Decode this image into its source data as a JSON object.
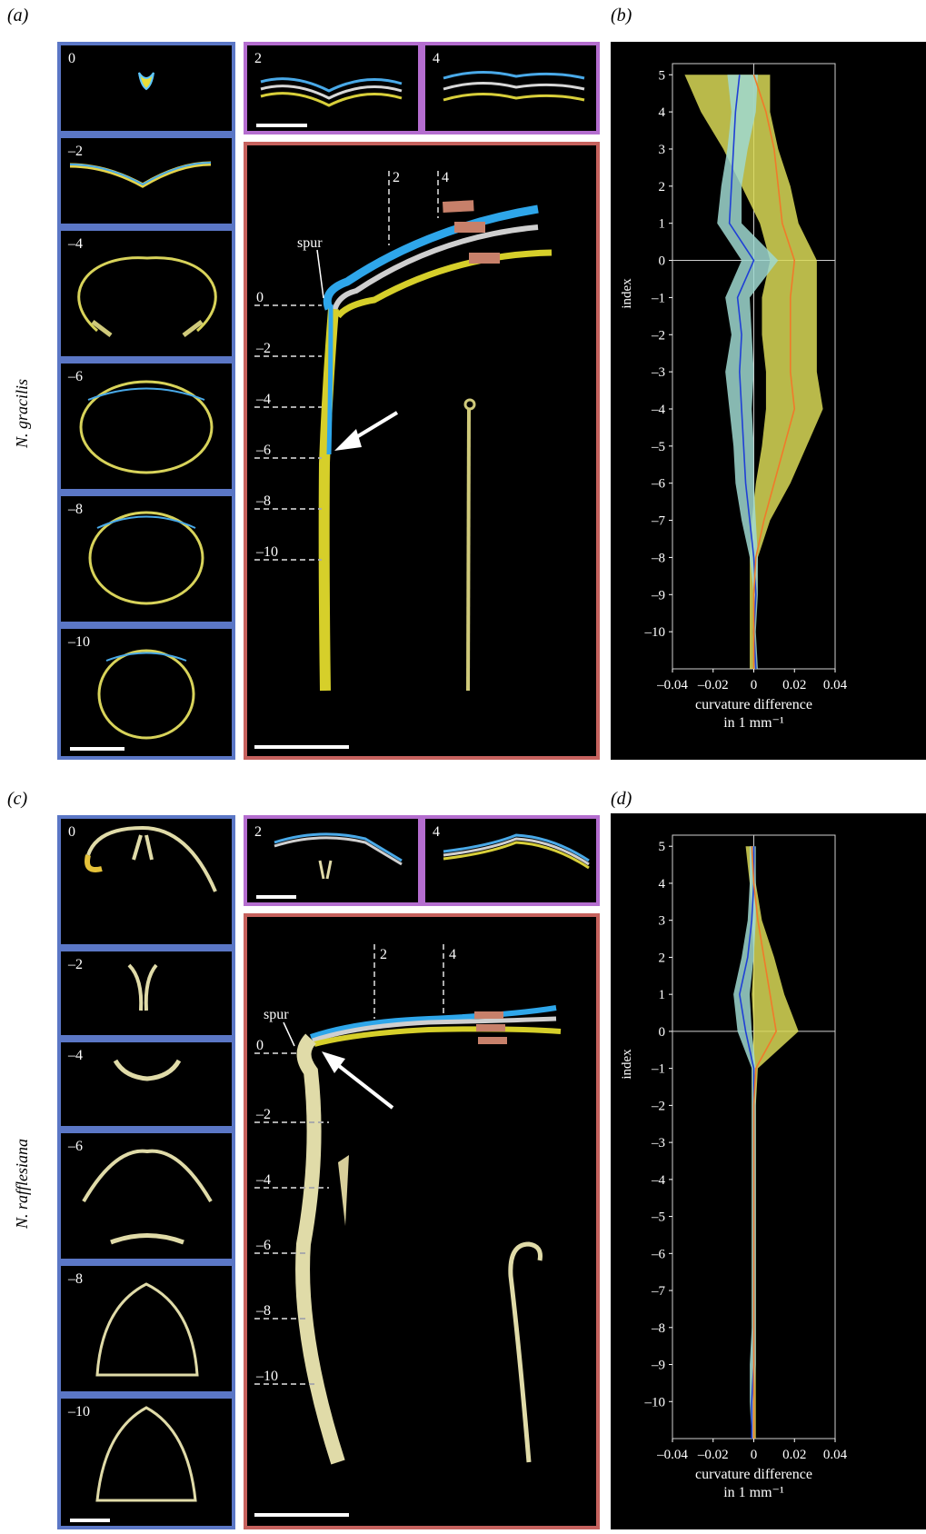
{
  "figure": {
    "panel_labels": {
      "a": "(a)",
      "b": "(b)",
      "c": "(c)",
      "d": "(d)"
    },
    "species_top": "N. gracilis",
    "species_bottom": "N. rafflesiana",
    "sections_left": [
      "0",
      "–2",
      "–4",
      "–6",
      "–8",
      "–10"
    ],
    "sections_top": [
      "2",
      "4"
    ],
    "main_labels": {
      "spur": "spur",
      "mark_2": "2",
      "mark_4": "4",
      "levels": [
        "0",
        "–2",
        "–4",
        "–6",
        "–8",
        "–10"
      ]
    }
  },
  "chart_data": [
    {
      "type": "line",
      "panel": "(b)",
      "xlabel": "curvature difference",
      "xlabel2": "in 1 mm⁻¹",
      "ylabel": "index",
      "xlim": [
        -0.04,
        0.04
      ],
      "ylim": [
        -11,
        5.3
      ],
      "x_ticks": [
        "–0.04",
        "–0.02",
        "0",
        "0.02",
        "0.04"
      ],
      "y_ticks": [
        "5",
        "4",
        "3",
        "2",
        "1",
        "0",
        "–1",
        "–2",
        "–3",
        "–4",
        "–5",
        "–6",
        "–7",
        "–8",
        "–9",
        "–10"
      ],
      "y": [
        5,
        4,
        3,
        2,
        1,
        0,
        -1,
        -2,
        -3,
        -4,
        -5,
        -6,
        -7,
        -8,
        -9,
        -10,
        -11
      ],
      "series": [
        {
          "color": "#1f3fd6",
          "band_color": "#9fd8d0",
          "values": [
            -0.007,
            -0.009,
            -0.01,
            -0.011,
            -0.012,
            0.0,
            -0.008,
            -0.006,
            -0.007,
            -0.006,
            -0.005,
            -0.004,
            -0.002,
            0.0,
            0.001,
            0.0,
            0.001
          ],
          "lower": [
            -0.013,
            -0.011,
            -0.013,
            -0.016,
            -0.018,
            -0.006,
            -0.014,
            -0.011,
            -0.014,
            -0.012,
            -0.01,
            -0.009,
            -0.006,
            -0.002,
            0.0,
            0.0,
            0.0
          ],
          "upper": [
            0.002,
            0.001,
            -0.003,
            -0.006,
            -0.006,
            0.012,
            -0.002,
            -0.001,
            0.0,
            -0.001,
            0.0,
            0.0,
            0.001,
            0.002,
            0.002,
            0.001,
            0.002
          ]
        },
        {
          "color": "#f07a2a",
          "band_color": "#d9d957",
          "values": [
            0.0,
            0.006,
            0.01,
            0.012,
            0.014,
            0.02,
            0.018,
            0.018,
            0.018,
            0.02,
            0.015,
            0.01,
            0.005,
            0.001,
            0.0,
            0.0,
            0.0
          ],
          "lower": [
            -0.034,
            -0.026,
            -0.015,
            -0.006,
            0.003,
            0.008,
            0.004,
            0.004,
            0.006,
            0.006,
            0.004,
            0.001,
            -0.001,
            -0.002,
            -0.002,
            -0.002,
            -0.002
          ],
          "upper": [
            0.008,
            0.008,
            0.012,
            0.018,
            0.022,
            0.031,
            0.031,
            0.031,
            0.031,
            0.034,
            0.026,
            0.018,
            0.008,
            0.002,
            0.001,
            0.0,
            0.0
          ]
        }
      ]
    },
    {
      "type": "line",
      "panel": "(d)",
      "xlabel": "curvature difference",
      "xlabel2": "in 1 mm⁻¹",
      "ylabel": "index",
      "xlim": [
        -0.04,
        0.04
      ],
      "ylim": [
        -11,
        5.3
      ],
      "x_ticks": [
        "–0.04",
        "–0.02",
        "0",
        "0.02",
        "0.04"
      ],
      "y_ticks": [
        "5",
        "4",
        "3",
        "2",
        "1",
        "0",
        "–1",
        "–2",
        "–3",
        "–4",
        "–5",
        "–6",
        "–7",
        "–8",
        "–9",
        "–10"
      ],
      "y": [
        5,
        4,
        3,
        2,
        1,
        0,
        -1,
        -2,
        -3,
        -4,
        -5,
        -6,
        -7,
        -8,
        -9,
        -10,
        -11
      ],
      "series": [
        {
          "color": "#1f3fd6",
          "band_color": "#9fd8d0",
          "values": [
            0.0,
            0.0,
            -0.001,
            -0.003,
            -0.007,
            -0.004,
            0.0,
            0.0,
            0.0,
            0.0,
            0.0,
            0.0,
            0.0,
            0.0,
            0.0,
            -0.001,
            -0.001
          ],
          "lower": [
            -0.002,
            -0.002,
            -0.003,
            -0.006,
            -0.01,
            -0.008,
            -0.001,
            -0.001,
            -0.001,
            -0.001,
            -0.001,
            -0.001,
            -0.001,
            -0.001,
            -0.002,
            -0.002,
            -0.001
          ],
          "upper": [
            0.001,
            0.001,
            0.001,
            0.0,
            -0.002,
            -0.001,
            0.001,
            0.001,
            0.001,
            0.001,
            0.001,
            0.001,
            0.001,
            0.001,
            0.001,
            0.0,
            0.0
          ]
        },
        {
          "color": "#f07a2a",
          "band_color": "#d9d957",
          "values": [
            -0.001,
            0.0,
            0.002,
            0.005,
            0.008,
            0.011,
            0.001,
            0.0,
            0.0,
            0.0,
            0.0,
            0.0,
            0.0,
            0.0,
            0.0,
            0.0,
            0.0
          ],
          "lower": [
            -0.004,
            -0.002,
            -0.001,
            0.0,
            -0.001,
            0.0,
            -0.001,
            -0.001,
            -0.001,
            -0.001,
            -0.001,
            -0.001,
            -0.001,
            -0.001,
            -0.001,
            -0.001,
            -0.001
          ],
          "upper": [
            0.0,
            0.001,
            0.004,
            0.01,
            0.015,
            0.022,
            0.002,
            0.001,
            0.001,
            0.001,
            0.001,
            0.001,
            0.001,
            0.001,
            0.001,
            0.001,
            0.001
          ]
        }
      ]
    }
  ]
}
